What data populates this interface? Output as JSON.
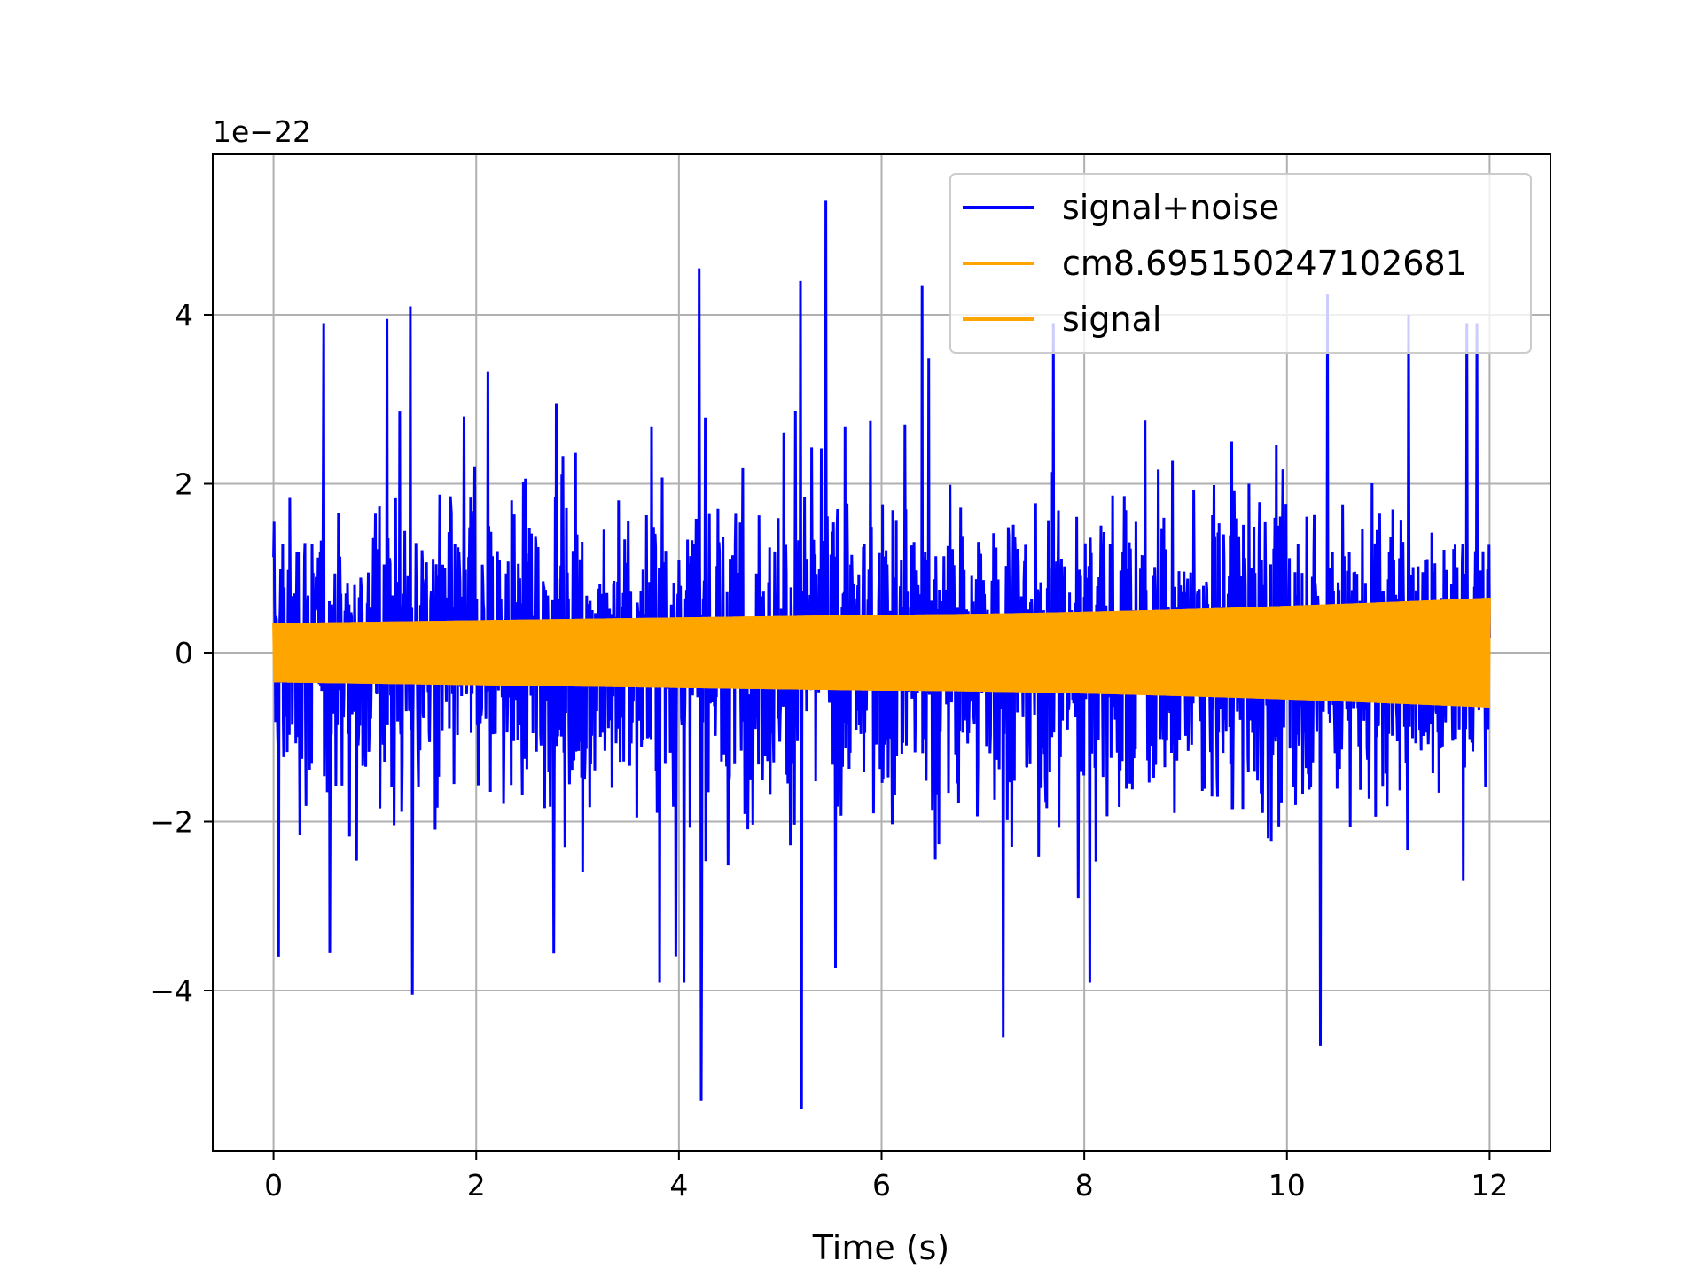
{
  "chart_data": {
    "type": "line",
    "xlabel": "Time (s)",
    "ylabel": "",
    "y_offset_label": "1e−22",
    "xlim": [
      -0.6,
      12.6
    ],
    "ylim": [
      -5.9,
      5.9
    ],
    "xticks": [
      0,
      2,
      4,
      6,
      8,
      10,
      12
    ],
    "xtick_labels": [
      "0",
      "2",
      "4",
      "6",
      "8",
      "10",
      "12"
    ],
    "yticks": [
      -4,
      -2,
      0,
      2,
      4
    ],
    "ytick_labels": [
      "−4",
      "−2",
      "0",
      "2",
      "4"
    ],
    "grid": true,
    "legend_position": "top-right",
    "series": [
      {
        "name": "signal+noise",
        "color": "#0000ff",
        "x_start": 0,
        "x_end": 12,
        "typical_range": [
          -1.7,
          1.7
        ],
        "max": 5.35,
        "min": -5.4,
        "peaks": [
          {
            "x": 1.35,
            "y": 4.1
          },
          {
            "x": 1.12,
            "y": 3.95
          },
          {
            "x": 4.2,
            "y": 4.55
          },
          {
            "x": 5.45,
            "y": 5.35
          },
          {
            "x": 5.2,
            "y": 4.4
          },
          {
            "x": 6.4,
            "y": 4.35
          },
          {
            "x": 10.4,
            "y": 4.25
          },
          {
            "x": 11.2,
            "y": 4.0
          }
        ],
        "troughs": [
          {
            "x": 1.37,
            "y": -4.05
          },
          {
            "x": 4.22,
            "y": -5.3
          },
          {
            "x": 5.21,
            "y": -5.4
          },
          {
            "x": 7.2,
            "y": -4.55
          },
          {
            "x": 10.33,
            "y": -4.65
          },
          {
            "x": 0.05,
            "y": -3.6
          }
        ]
      },
      {
        "name": "cm8.695150247102681",
        "color": "#ffa500",
        "x_start": 0,
        "x_end": 12,
        "envelope_start": 0.35,
        "envelope_mid": 0.45,
        "envelope_end": 0.65
      },
      {
        "name": "signal",
        "color": "#ffa500",
        "x_start": 0,
        "x_end": 12,
        "envelope_start": 0.35,
        "envelope_mid": 0.45,
        "envelope_end": 0.65
      }
    ]
  }
}
